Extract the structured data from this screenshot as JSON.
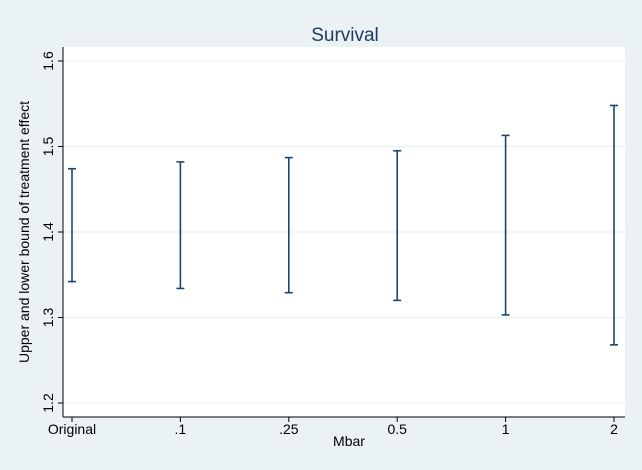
{
  "chart_data": {
    "type": "errorbar",
    "title": "Survival",
    "xlabel": "Mbar",
    "ylabel": "Upper and lower bound of treatment effect",
    "categories": [
      "Original",
      ".1",
      ".25",
      "0.5",
      "1",
      "2"
    ],
    "series": [
      {
        "lower": [
          1.342,
          1.334,
          1.329,
          1.32,
          1.303,
          1.268
        ],
        "upper": [
          1.474,
          1.482,
          1.487,
          1.495,
          1.513,
          1.548
        ]
      }
    ],
    "ylim": [
      1.2,
      1.6
    ],
    "yticks": [
      1.2,
      1.3,
      1.4,
      1.5,
      1.6
    ],
    "ytick_labels": [
      "1.2",
      "1.3",
      "1.4",
      "1.5",
      "1.6"
    ],
    "grid": true,
    "colors": {
      "background": "#eaf2f3",
      "plot_area": "#ffffff",
      "bar": "#1a476f",
      "grid": "#eaf2f3",
      "text": "#000000",
      "title": "#1e3a5f"
    }
  }
}
